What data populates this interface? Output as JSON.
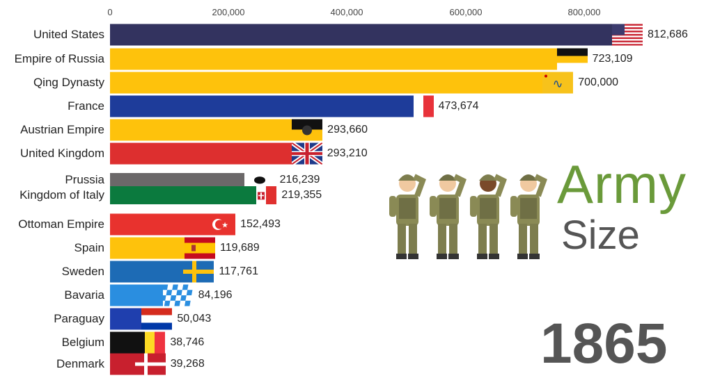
{
  "chart_data": {
    "type": "bar",
    "orientation": "horizontal",
    "title": "Army Size",
    "title_line1": "Army",
    "title_line2": "Size",
    "year": "1865",
    "x_ticks": [
      "0",
      "200,000",
      "400,000",
      "600,000",
      "800,000"
    ],
    "xlim": [
      0,
      850000
    ],
    "categories": [
      "United States",
      "Empire of Russia",
      "Qing Dynasty",
      "France",
      "Austrian Empire",
      "United Kingdom",
      "Prussia",
      "Kingdom of Italy",
      "Ottoman Empire",
      "Spain",
      "Sweden",
      "Bavaria",
      "Paraguay",
      "Belgium",
      "Denmark"
    ],
    "values": [
      812686,
      723109,
      700000,
      473674,
      293660,
      293210,
      216239,
      219355,
      152493,
      119689,
      117761,
      84196,
      50043,
      38746,
      39268
    ],
    "value_labels": [
      "812,686",
      "723,109",
      "700,000",
      "473,674",
      "293,660",
      "293,210",
      "216,239",
      "219,355",
      "152,493",
      "119,689",
      "117,761",
      "84,196",
      "50,043",
      "38,746",
      "39,268"
    ],
    "colors": [
      "#33335f",
      "#fec20c",
      "#fec20c",
      "#1e3c9a",
      "#fec20c",
      "#dd2f2f",
      "#6b6869",
      "#0b7a3e",
      "#e8322e",
      "#fec20c",
      "#1d6bb5",
      "#2a8ee0",
      "#1f3fae",
      "#111111",
      "#c8202e"
    ],
    "flags": [
      "us-flag-icon",
      "russia-flag-icon",
      "qing-flag-icon",
      "france-flag-icon",
      "austria-flag-icon",
      "uk-flag-icon",
      "prussia-flag-icon",
      "italy-flag-icon",
      "ottoman-flag-icon",
      "spain-flag-icon",
      "sweden-flag-icon",
      "bavaria-flag-icon",
      "paraguay-flag-icon",
      "belgium-flag-icon",
      "denmark-flag-icon"
    ]
  }
}
